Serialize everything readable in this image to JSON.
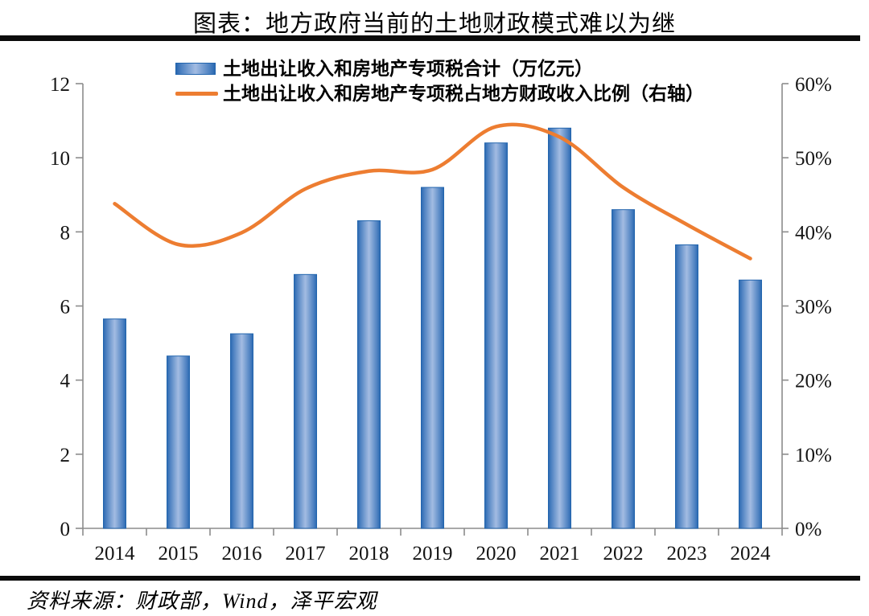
{
  "title": "图表：地方政府当前的土地财政模式难以为继",
  "source": "资料来源：财政部，Wind，泽平宏观",
  "colors": {
    "bar_edge": "#2a68b0",
    "bar_mid": "#4a7fc0",
    "bar_center": "#a3bce2",
    "bar_border": "#2265ae",
    "line": "#ed7d31",
    "axis": "#8c8c8c",
    "label": "#141414",
    "rule": "#0b0b0b"
  },
  "chart_data": {
    "type": "bar+line",
    "title": "图表：地方政府当前的土地财政模式难以为继",
    "categories": [
      "2014",
      "2015",
      "2016",
      "2017",
      "2018",
      "2019",
      "2020",
      "2021",
      "2022",
      "2023",
      "2024"
    ],
    "series": [
      {
        "name": "土地出让收入和房地产专项税合计（万亿元）",
        "type": "bar",
        "axis": "left",
        "values": [
          5.65,
          4.65,
          5.25,
          6.85,
          8.3,
          9.2,
          10.4,
          10.8,
          8.6,
          7.65,
          6.7
        ]
      },
      {
        "name": "土地出让收入和房地产专项税占地方财政收入比例（右轴）",
        "type": "line",
        "axis": "right",
        "values": [
          43.8,
          38.3,
          39.9,
          45.8,
          48.2,
          48.4,
          54.2,
          52.8,
          46.0,
          41.0,
          36.4
        ]
      }
    ],
    "left_axis": {
      "min": 0,
      "max": 12,
      "step": 2,
      "tick_labels": [
        "0",
        "2",
        "4",
        "6",
        "8",
        "10",
        "12"
      ]
    },
    "right_axis": {
      "min": 0,
      "max": 60,
      "step": 10,
      "unit": "%",
      "tick_labels": [
        "0%",
        "10%",
        "20%",
        "30%",
        "40%",
        "50%",
        "60%"
      ]
    },
    "legend_position": "top",
    "grid": false
  }
}
